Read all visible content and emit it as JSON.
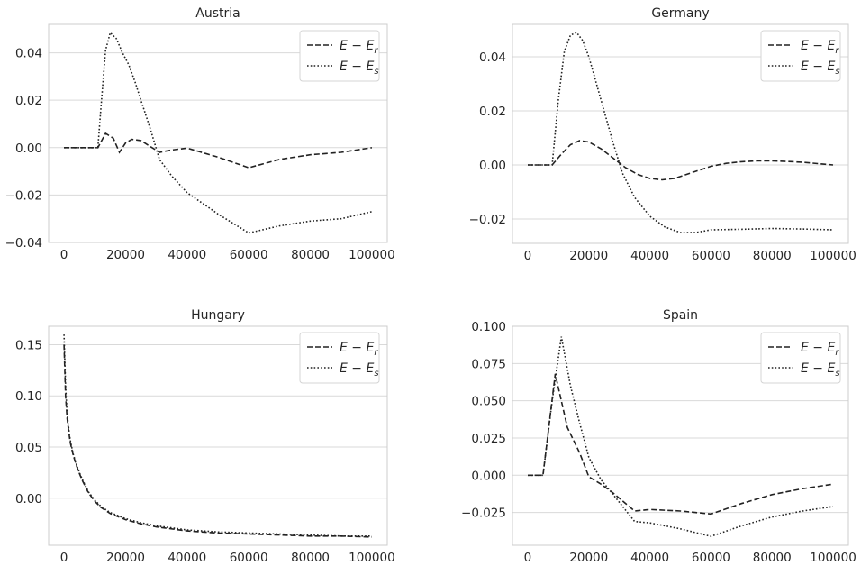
{
  "chart_data": [
    {
      "type": "line",
      "title": "Austria",
      "xlim": [
        -5000,
        105000
      ],
      "ylim": [
        -0.04,
        0.052
      ],
      "xticks": [
        0,
        20000,
        40000,
        60000,
        80000,
        100000
      ],
      "yticks": [
        -0.04,
        -0.02,
        0.0,
        0.02,
        0.04
      ],
      "ytick_labels": [
        "−0.04",
        "−0.02",
        "0.00",
        "0.02",
        "0.04"
      ],
      "legend_placement": "upper-right",
      "grid": true,
      "series": [
        {
          "name": "E − E_r",
          "style": "dashed",
          "x": [
            0,
            11000,
            13500,
            16000,
            18000,
            20000,
            22000,
            25000,
            28000,
            31000,
            35000,
            40000,
            50000,
            60000,
            70000,
            80000,
            90000,
            100000
          ],
          "y": [
            0,
            0,
            0.006,
            0.004,
            -0.002,
            0.002,
            0.0035,
            0.003,
            0.0005,
            -0.002,
            -0.001,
            -0.0002,
            -0.004,
            -0.0085,
            -0.005,
            -0.003,
            -0.002,
            0.0
          ]
        },
        {
          "name": "E − E_s",
          "style": "dotted",
          "x": [
            0,
            11000,
            12000,
            13500,
            15000,
            17000,
            19000,
            21000,
            23000,
            25000,
            28000,
            31000,
            35000,
            40000,
            50000,
            60000,
            70000,
            80000,
            90000,
            100000
          ],
          "y": [
            0,
            0,
            0.017,
            0.041,
            0.0485,
            0.046,
            0.04,
            0.035,
            0.028,
            0.02,
            0.008,
            -0.005,
            -0.012,
            -0.019,
            -0.028,
            -0.036,
            -0.033,
            -0.031,
            -0.03,
            -0.027
          ]
        }
      ]
    },
    {
      "type": "line",
      "title": "Germany",
      "xlim": [
        -5000,
        105000
      ],
      "ylim": [
        -0.029,
        0.052
      ],
      "xticks": [
        0,
        20000,
        40000,
        60000,
        80000,
        100000
      ],
      "yticks": [
        -0.02,
        0.0,
        0.02,
        0.04
      ],
      "ytick_labels": [
        "−0.02",
        "0.00",
        "0.02",
        "0.04"
      ],
      "legend_placement": "upper-right",
      "grid": true,
      "series": [
        {
          "name": "E − E_r",
          "style": "dashed",
          "x": [
            0,
            8000,
            11000,
            14000,
            17000,
            20000,
            24000,
            28000,
            32000,
            36000,
            40000,
            44000,
            48000,
            52000,
            56000,
            60000,
            65000,
            70000,
            75000,
            80000,
            85000,
            90000,
            95000,
            100000
          ],
          "y": [
            0,
            0,
            0.004,
            0.0075,
            0.009,
            0.0085,
            0.006,
            0.0025,
            -0.001,
            -0.0035,
            -0.005,
            -0.0055,
            -0.005,
            -0.0035,
            -0.002,
            -0.0005,
            0.0006,
            0.0012,
            0.0015,
            0.0015,
            0.0013,
            0.001,
            0.0005,
            0.0
          ]
        },
        {
          "name": "E − E_s",
          "style": "dotted",
          "x": [
            0,
            8000,
            10000,
            12000,
            14000,
            16000,
            18000,
            20000,
            22000,
            25000,
            28000,
            31000,
            35000,
            40000,
            45000,
            50000,
            55000,
            60000,
            70000,
            80000,
            90000,
            100000
          ],
          "y": [
            0,
            0,
            0.024,
            0.042,
            0.048,
            0.049,
            0.046,
            0.04,
            0.032,
            0.02,
            0.008,
            -0.003,
            -0.012,
            -0.019,
            -0.023,
            -0.025,
            -0.025,
            -0.024,
            -0.0238,
            -0.0235,
            -0.0237,
            -0.024
          ]
        }
      ]
    },
    {
      "type": "line",
      "title": "Hungary",
      "xlim": [
        -5000,
        105000
      ],
      "ylim": [
        -0.046,
        0.168
      ],
      "xticks": [
        0,
        20000,
        40000,
        60000,
        80000,
        100000
      ],
      "yticks": [
        0.0,
        0.05,
        0.1,
        0.15
      ],
      "ytick_labels": [
        "0.00",
        "0.05",
        "0.10",
        "0.15"
      ],
      "legend_placement": "upper-right",
      "grid": true,
      "series": [
        {
          "name": "E − E_r",
          "style": "dashed",
          "x": [
            0,
            500,
            1000,
            2000,
            3000,
            4000,
            5000,
            6000,
            8000,
            10000,
            12000,
            15000,
            20000,
            25000,
            30000,
            40000,
            50000,
            60000,
            70000,
            80000,
            90000,
            100000
          ],
          "y": [
            0.15,
            0.1,
            0.078,
            0.055,
            0.042,
            0.032,
            0.024,
            0.017,
            0.005,
            -0.003,
            -0.009,
            -0.015,
            -0.021,
            -0.025,
            -0.028,
            -0.032,
            -0.034,
            -0.035,
            -0.036,
            -0.037,
            -0.037,
            -0.038
          ]
        },
        {
          "name": "E − E_s",
          "style": "dotted",
          "x": [
            0,
            500,
            1000,
            2000,
            3000,
            4000,
            5000,
            6000,
            8000,
            10000,
            12000,
            15000,
            20000,
            25000,
            30000,
            40000,
            50000,
            60000,
            70000,
            80000,
            90000,
            100000
          ],
          "y": [
            0.16,
            0.11,
            0.082,
            0.057,
            0.043,
            0.033,
            0.025,
            0.018,
            0.006,
            -0.002,
            -0.008,
            -0.014,
            -0.02,
            -0.024,
            -0.027,
            -0.031,
            -0.033,
            -0.034,
            -0.035,
            -0.036,
            -0.037,
            -0.037
          ]
        }
      ]
    },
    {
      "type": "line",
      "title": "Spain",
      "xlim": [
        -5000,
        105000
      ],
      "ylim": [
        -0.047,
        0.1
      ],
      "xticks": [
        0,
        20000,
        40000,
        60000,
        80000,
        100000
      ],
      "yticks": [
        -0.025,
        0.0,
        0.025,
        0.05,
        0.075,
        0.1
      ],
      "ytick_labels": [
        "−0.025",
        "0.000",
        "0.025",
        "0.050",
        "0.075",
        "0.100"
      ],
      "legend_placement": "upper-right",
      "grid": true,
      "series": [
        {
          "name": "E − E_r",
          "style": "dashed",
          "x": [
            0,
            5000,
            9000,
            13000,
            17000,
            20000,
            24000,
            28000,
            35000,
            40000,
            50000,
            60000,
            70000,
            80000,
            90000,
            100000
          ],
          "y": [
            0,
            0,
            0.068,
            0.032,
            0.015,
            -0.001,
            -0.006,
            -0.012,
            -0.024,
            -0.023,
            -0.024,
            -0.026,
            -0.019,
            -0.013,
            -0.009,
            -0.006
          ]
        },
        {
          "name": "E − E_s",
          "style": "dotted",
          "x": [
            0,
            5000,
            8000,
            11000,
            14000,
            17000,
            20000,
            24000,
            28000,
            35000,
            40000,
            50000,
            60000,
            70000,
            80000,
            90000,
            100000
          ],
          "y": [
            0,
            0,
            0.05,
            0.093,
            0.06,
            0.035,
            0.012,
            -0.003,
            -0.013,
            -0.031,
            -0.032,
            -0.036,
            -0.041,
            -0.034,
            -0.028,
            -0.024,
            -0.021
          ]
        }
      ]
    }
  ]
}
